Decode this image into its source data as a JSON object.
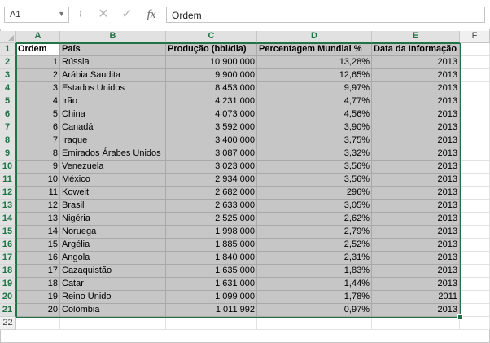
{
  "formula_bar": {
    "name_box": "A1",
    "formula": "Ordem",
    "fx_label": "fx",
    "cancel_glyph": "✕",
    "enter_glyph": "✓",
    "separator": "⁝"
  },
  "columns": [
    "A",
    "B",
    "C",
    "D",
    "E",
    "F"
  ],
  "row_numbers": [
    "1",
    "2",
    "3",
    "4",
    "5",
    "6",
    "7",
    "8",
    "9",
    "10",
    "11",
    "12",
    "13",
    "14",
    "15",
    "16",
    "17",
    "18",
    "19",
    "20",
    "21",
    "22"
  ],
  "headers": [
    "Ordem",
    "País",
    "Produção (bbl/dia)",
    "Percentagem Mundial %",
    "Data da Informação"
  ],
  "rows": [
    [
      "1",
      "Rússia",
      "10 900 000",
      "13,28%",
      "2013"
    ],
    [
      "2",
      "Arábia Saudita",
      "9 900 000",
      "12,65%",
      "2013"
    ],
    [
      "3",
      "Estados Unidos",
      "8 453 000",
      "9,97%",
      "2013"
    ],
    [
      "4",
      "Irão",
      "4 231 000",
      "4,77%",
      "2013"
    ],
    [
      "5",
      "China",
      "4 073 000",
      "4,56%",
      "2013"
    ],
    [
      "6",
      "Canadá",
      "3 592 000",
      "3,90%",
      "2013"
    ],
    [
      "7",
      "Iraque",
      "3 400 000",
      "3,75%",
      "2013"
    ],
    [
      "8",
      "Emirados Árabes Unidos",
      "3 087 000",
      "3,32%",
      "2013"
    ],
    [
      "9",
      "Venezuela",
      "3 023 000",
      "3,56%",
      "2013"
    ],
    [
      "10",
      "México",
      "2 934 000",
      "3,56%",
      "2013"
    ],
    [
      "11",
      "Koweit",
      "2 682 000",
      "296%",
      "2013"
    ],
    [
      "12",
      "Brasil",
      "2 633 000",
      "3,05%",
      "2013"
    ],
    [
      "13",
      "Nigéria",
      "2 525 000",
      "2,62%",
      "2013"
    ],
    [
      "14",
      "Noruega",
      "1 998 000",
      "2,79%",
      "2013"
    ],
    [
      "15",
      "Argélia",
      "1 885 000",
      "2,52%",
      "2013"
    ],
    [
      "16",
      "Angola",
      "1 840 000",
      "2,31%",
      "2013"
    ],
    [
      "17",
      "Cazaquistão",
      "1 635 000",
      "1,83%",
      "2013"
    ],
    [
      "18",
      "Catar",
      "1 631 000",
      "1,44%",
      "2013"
    ],
    [
      "19",
      "Reino Unido",
      "1 099 000",
      "1,78%",
      "2011"
    ],
    [
      "20",
      "Colômbia",
      "1 011 992",
      "0,97%",
      "2013"
    ]
  ],
  "accent_color": "#217346"
}
